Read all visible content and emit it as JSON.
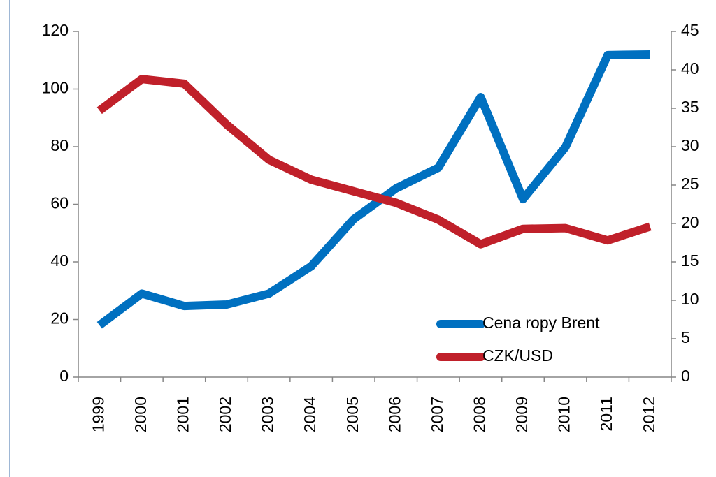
{
  "chart_data": {
    "type": "line",
    "categories": [
      "1999",
      "2000",
      "2001",
      "2002",
      "2003",
      "2004",
      "2005",
      "2006",
      "2007",
      "2008",
      "2009",
      "2010",
      "2011",
      "2012"
    ],
    "series": [
      {
        "name": "Cena ropy Brent",
        "color": "#0070c0",
        "values": [
          18,
          29,
          24.7,
          25.2,
          29,
          38.5,
          54.8,
          65.5,
          72.7,
          97.2,
          61.8,
          79.8,
          111.8,
          112
        ]
      },
      {
        "name": "CZK/USD",
        "color": "#c0202a",
        "axis": "y2",
        "values": [
          34.7,
          38.8,
          38.2,
          32.9,
          28.3,
          25.7,
          24.2,
          22.7,
          20.5,
          17.3,
          19.3,
          19.4,
          17.8,
          19.6
        ]
      }
    ],
    "ylim": [
      0,
      120
    ],
    "yticks": [
      0,
      20,
      40,
      60,
      80,
      100,
      120
    ],
    "y2lim": [
      0,
      45
    ],
    "y2ticks": [
      0,
      5,
      10,
      15,
      20,
      25,
      30,
      35,
      40,
      45
    ],
    "legend": "lower right"
  }
}
